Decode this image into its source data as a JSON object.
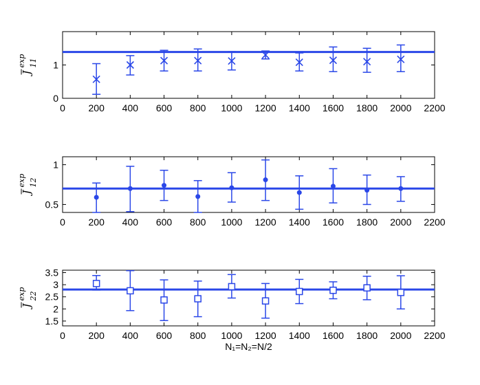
{
  "chart_data": [
    {
      "type": "scatter",
      "ylabel_base": "J",
      "ylabel_sub": "11",
      "ylabel_sup": "exp",
      "xlim": [
        0,
        2200
      ],
      "ylim": [
        0,
        2
      ],
      "xticks": [
        0,
        200,
        400,
        600,
        800,
        1000,
        1200,
        1400,
        1600,
        1800,
        2000,
        2200
      ],
      "yticks": [
        0,
        1
      ],
      "marker": "x",
      "x": [
        200,
        400,
        600,
        800,
        1000,
        1200,
        1400,
        1600,
        1800,
        2000
      ],
      "y": [
        0.57,
        1.0,
        1.13,
        1.13,
        1.12,
        1.3,
        1.08,
        1.14,
        1.1,
        1.17
      ],
      "err_low": [
        0.12,
        0.7,
        0.82,
        0.82,
        0.85,
        1.18,
        0.82,
        0.8,
        0.78,
        0.8
      ],
      "err_high": [
        1.04,
        1.28,
        1.44,
        1.48,
        1.4,
        1.42,
        1.36,
        1.54,
        1.5,
        1.6
      ],
      "hline": 1.39,
      "color": "#2a47e8"
    },
    {
      "type": "scatter",
      "ylabel_base": "J",
      "ylabel_sub": "12",
      "ylabel_sup": "exp",
      "xlim": [
        0,
        2200
      ],
      "ylim": [
        0.4,
        1.1
      ],
      "xticks": [
        0,
        200,
        400,
        600,
        800,
        1000,
        1200,
        1400,
        1600,
        1800,
        2000,
        2200
      ],
      "yticks": [
        0.5,
        1
      ],
      "marker": "dot",
      "x": [
        200,
        400,
        600,
        800,
        1000,
        1200,
        1400,
        1600,
        1800,
        2000
      ],
      "y": [
        0.59,
        0.7,
        0.74,
        0.6,
        0.71,
        0.81,
        0.65,
        0.73,
        0.68,
        0.7
      ],
      "err_low": [
        0.4,
        0.41,
        0.55,
        0.4,
        0.53,
        0.55,
        0.44,
        0.52,
        0.5,
        0.54
      ],
      "err_high": [
        0.77,
        0.98,
        0.93,
        0.8,
        0.9,
        1.06,
        0.86,
        0.95,
        0.87,
        0.85
      ],
      "hline": 0.7,
      "color": "#2a47e8"
    },
    {
      "type": "scatter",
      "ylabel_base": "J",
      "ylabel_sub": "22",
      "ylabel_sup": "exp",
      "xlim": [
        0,
        2200
      ],
      "ylim": [
        1.3,
        3.6
      ],
      "xticks": [
        0,
        200,
        400,
        600,
        800,
        1000,
        1200,
        1400,
        1600,
        1800,
        2000,
        2200
      ],
      "yticks": [
        1.5,
        2,
        2.5,
        3,
        3.5
      ],
      "xlabel": "N₁=N₂=N/2",
      "marker": "square",
      "x": [
        200,
        400,
        600,
        800,
        1000,
        1200,
        1400,
        1600,
        1800,
        2000
      ],
      "y": [
        3.05,
        2.75,
        2.37,
        2.42,
        2.92,
        2.33,
        2.72,
        2.77,
        2.87,
        2.68
      ],
      "err_low": [
        2.78,
        1.93,
        1.52,
        1.68,
        2.45,
        1.62,
        2.22,
        2.42,
        2.38,
        2.0
      ],
      "err_high": [
        3.38,
        3.58,
        3.2,
        3.15,
        3.42,
        3.05,
        3.22,
        3.12,
        3.35,
        3.37
      ],
      "hline": 2.8,
      "color": "#2a47e8"
    }
  ]
}
